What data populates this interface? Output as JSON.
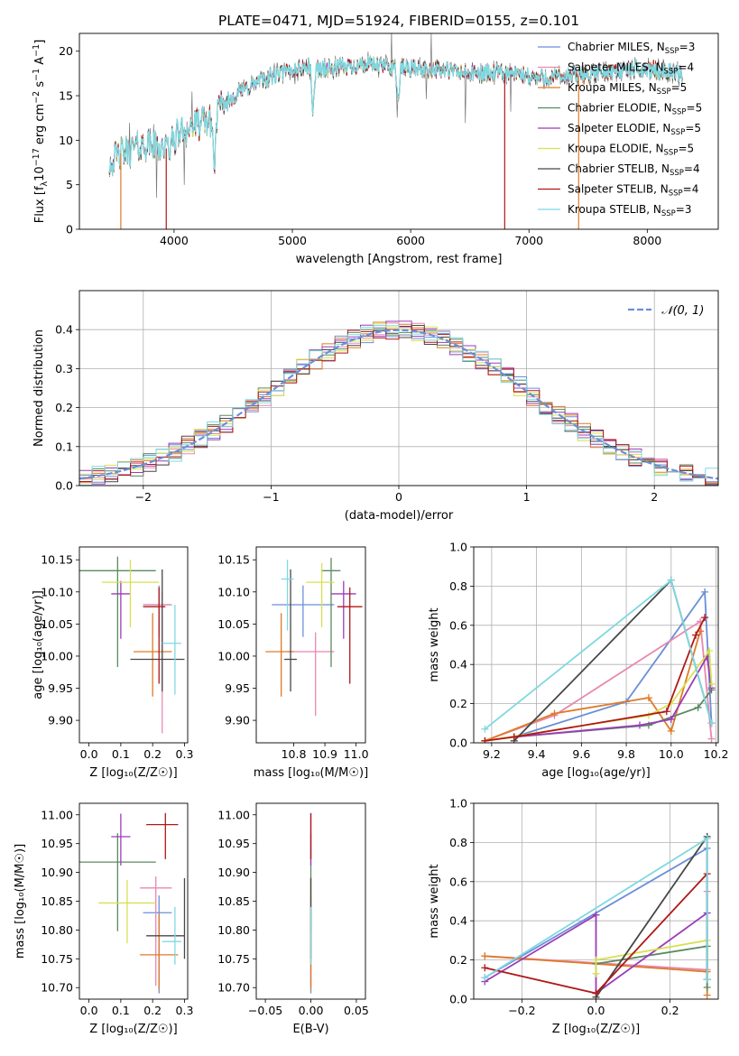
{
  "figure": {
    "title": "PLATE=0471, MJD=51924, FIBERID=0155, z=0.101"
  },
  "models": [
    {
      "name": "Chabrier MILES",
      "nssp": "3",
      "color": "#6a8fd8"
    },
    {
      "name": "Salpeter MILES",
      "nssp": "4",
      "color": "#e888b0"
    },
    {
      "name": "Kroupa MILES",
      "nssp": "5",
      "color": "#e07a28"
    },
    {
      "name": "Chabrier ELODIE",
      "nssp": "5",
      "color": "#5a8a60"
    },
    {
      "name": "Salpeter ELODIE",
      "nssp": "5",
      "color": "#9a3cb8"
    },
    {
      "name": "Kroupa ELODIE",
      "nssp": "5",
      "color": "#d8e050"
    },
    {
      "name": "Chabrier STELIB",
      "nssp": "4",
      "color": "#474747"
    },
    {
      "name": "Salpeter STELIB",
      "nssp": "4",
      "color": "#b01818"
    },
    {
      "name": "Kroupa STELIB",
      "nssp": "3",
      "color": "#80d8e0"
    }
  ],
  "chart_data": [
    {
      "id": "spectrum",
      "type": "line",
      "xlabel": "wavelength [Angstrom, rest frame]",
      "ylabel": "Flux [f_λ 10^-17 erg cm^-2 s^-1 A^-1]",
      "xlim": [
        3200,
        8600
      ],
      "ylim": [
        0,
        22
      ],
      "xticks": [
        4000,
        5000,
        6000,
        7000,
        8000
      ],
      "yticks": [
        0,
        5,
        10,
        15,
        20
      ],
      "legend_loc": "upper right",
      "continuum": {
        "x": [
          3450,
          3550,
          3650,
          3750,
          3850,
          3950,
          4050,
          4150,
          4250,
          4350,
          4500,
          4700,
          4900,
          5100,
          5300,
          5600,
          5900,
          6200,
          6500,
          6800,
          7100,
          7400,
          7700,
          8000,
          8300
        ],
        "y": [
          7.5,
          8.5,
          9.0,
          9.5,
          9.5,
          9.0,
          11.0,
          11.5,
          12.0,
          13.0,
          15.0,
          16.5,
          17.5,
          18.2,
          18.0,
          18.5,
          18.2,
          18.0,
          17.5,
          17.5,
          17.0,
          17.2,
          17.8,
          18.0,
          17.5
        ]
      },
      "dips": [
        {
          "x": 3550,
          "y": 0.0
        },
        {
          "x": 3934,
          "y": 0.0
        },
        {
          "x": 4300,
          "y": 12.0
        },
        {
          "x": 4340,
          "y": 7.0
        },
        {
          "x": 5175,
          "y": 13.0
        },
        {
          "x": 5895,
          "y": 14.0
        },
        {
          "x": 6795,
          "y": 0.0
        },
        {
          "x": 7420,
          "y": 0.0
        }
      ]
    },
    {
      "id": "residuals",
      "type": "histogram",
      "xlabel": "(data-model)/error",
      "ylabel": "Normed distribution",
      "xlim": [
        -2.5,
        2.5
      ],
      "ylim": [
        0,
        0.5
      ],
      "xticks": [
        -2,
        -1,
        0,
        1,
        2
      ],
      "yticks": [
        0.0,
        0.1,
        0.2,
        0.3,
        0.4
      ],
      "grid": true,
      "bin_width": 0.1,
      "reference_label": "𝒩(0, 1)",
      "reference_color": "#6a8fd8",
      "legend_loc": "upper right"
    },
    {
      "id": "z-age",
      "type": "errorbar",
      "xlabel": "Z [log₁₀(Z/Z☉)]",
      "ylabel": "age  [log₁₀(age/yr)]",
      "xlim": [
        -0.03,
        0.31
      ],
      "ylim": [
        9.865,
        10.17
      ],
      "xticks": [
        0.0,
        0.1,
        0.2,
        0.3
      ],
      "yticks": [
        9.9,
        9.95,
        10.0,
        10.05,
        10.1,
        10.15
      ],
      "points": [
        {
          "model": 0,
          "x": 0.22,
          "y": 10.08,
          "xerr": [
            0.05,
            0.04
          ],
          "yerr": [
            0.05,
            0.03
          ]
        },
        {
          "model": 1,
          "x": 0.23,
          "y": 10.08,
          "xerr": [
            0.06,
            0.03
          ],
          "yerr": [
            0.2,
            0.02
          ]
        },
        {
          "model": 2,
          "x": 0.2,
          "y": 10.007,
          "xerr": [
            0.06,
            0.06
          ],
          "yerr": [
            0.07,
            0.06
          ]
        },
        {
          "model": 3,
          "x": 0.09,
          "y": 10.133,
          "xerr": [
            0.12,
            0.12
          ],
          "yerr": [
            0.15,
            0.022
          ]
        },
        {
          "model": 4,
          "x": 0.1,
          "y": 10.097,
          "xerr": [
            0.03,
            0.03
          ],
          "yerr": [
            0.07,
            0.02
          ]
        },
        {
          "model": 5,
          "x": 0.13,
          "y": 10.115,
          "xerr": [
            0.09,
            0.09
          ],
          "yerr": [
            0.07,
            0.035
          ]
        },
        {
          "model": 6,
          "x": 0.23,
          "y": 9.995,
          "xerr": [
            0.1,
            0.07
          ],
          "yerr": [
            0.05,
            0.14
          ]
        },
        {
          "model": 7,
          "x": 0.22,
          "y": 10.077,
          "xerr": [
            0.05,
            0.02
          ],
          "yerr": [
            0.12,
            0.03
          ]
        },
        {
          "model": 8,
          "x": 0.27,
          "y": 10.02,
          "xerr": [
            0.04,
            0.02
          ],
          "yerr": [
            0.08,
            0.06
          ]
        }
      ]
    },
    {
      "id": "mass-age",
      "type": "errorbar",
      "xlabel": "mass [log₁₀(M/M☉)]",
      "ylabel": "",
      "xlim": [
        10.68,
        11.03
      ],
      "ylim": [
        9.865,
        10.17
      ],
      "xticks": [
        10.8,
        10.9,
        11.0
      ],
      "yticks": [
        9.9,
        9.95,
        10.0,
        10.05,
        10.1,
        10.15
      ],
      "points": [
        {
          "model": 0,
          "x": 10.83,
          "y": 10.08,
          "xerr": [
            0.1,
            0.1
          ],
          "yerr": [
            0.05,
            0.03
          ]
        },
        {
          "model": 1,
          "x": 10.87,
          "y": 10.007,
          "xerr": [
            0.09,
            0.06
          ],
          "yerr": [
            0.1,
            0.03
          ]
        },
        {
          "model": 2,
          "x": 10.76,
          "y": 10.007,
          "xerr": [
            0.05,
            0.04
          ],
          "yerr": [
            0.07,
            0.06
          ]
        },
        {
          "model": 3,
          "x": 10.92,
          "y": 10.133,
          "xerr": [
            0.03,
            0.03
          ],
          "yerr": [
            0.15,
            0.02
          ]
        },
        {
          "model": 4,
          "x": 10.96,
          "y": 10.097,
          "xerr": [
            0.04,
            0.04
          ],
          "yerr": [
            0.07,
            0.02
          ]
        },
        {
          "model": 5,
          "x": 10.89,
          "y": 10.115,
          "xerr": [
            0.05,
            0.04
          ],
          "yerr": [
            0.07,
            0.03
          ]
        },
        {
          "model": 6,
          "x": 10.79,
          "y": 9.995,
          "xerr": [
            0.02,
            0.02
          ],
          "yerr": [
            0.05,
            0.14
          ]
        },
        {
          "model": 7,
          "x": 10.98,
          "y": 10.077,
          "xerr": [
            0.04,
            0.04
          ],
          "yerr": [
            0.12,
            0.03
          ]
        },
        {
          "model": 8,
          "x": 10.78,
          "y": 10.12,
          "xerr": [
            0.02,
            0.02
          ],
          "yerr": [
            0.08,
            0.03
          ]
        }
      ]
    },
    {
      "id": "age-weight",
      "type": "line",
      "xlabel": "age  [log₁₀(age/yr)]",
      "ylabel": "mass weight",
      "xlim": [
        9.12,
        10.21
      ],
      "ylim": [
        0,
        1.0
      ],
      "xticks": [
        9.2,
        9.4,
        9.6,
        9.8,
        10.0,
        10.2
      ],
      "yticks": [
        0.0,
        0.2,
        0.4,
        0.6,
        0.8,
        1.0
      ],
      "grid": true,
      "series": [
        {
          "model": 0,
          "x": [
            9.3,
            9.8,
            10.15,
            10.18
          ],
          "y": [
            0.03,
            0.21,
            0.77,
            0.1
          ]
        },
        {
          "model": 1,
          "x": [
            9.17,
            9.48,
            10.13,
            10.18
          ],
          "y": [
            0.01,
            0.14,
            0.62,
            0.02
          ]
        },
        {
          "model": 2,
          "x": [
            9.17,
            9.48,
            9.9,
            10.0,
            10.13
          ],
          "y": [
            0.01,
            0.15,
            0.23,
            0.06,
            0.57
          ]
        },
        {
          "model": 3,
          "x": [
            9.3,
            9.9,
            10.12,
            10.18
          ],
          "y": [
            0.03,
            0.09,
            0.18,
            0.27
          ]
        },
        {
          "model": 4,
          "x": [
            9.3,
            9.86,
            10.0,
            10.16,
            10.18
          ],
          "y": [
            0.03,
            0.09,
            0.12,
            0.44,
            0.28
          ]
        },
        {
          "model": 5,
          "x": [
            9.17,
            9.9,
            10.0,
            10.17,
            10.18
          ],
          "y": [
            0.01,
            0.14,
            0.2,
            0.47,
            0.3
          ]
        },
        {
          "model": 6,
          "x": [
            9.3,
            10.0,
            10.18
          ],
          "y": [
            0.01,
            0.83,
            0.1
          ]
        },
        {
          "model": 7,
          "x": [
            9.17,
            9.3,
            9.98,
            10.11,
            10.15
          ],
          "y": [
            0.01,
            0.03,
            0.16,
            0.55,
            0.64
          ]
        },
        {
          "model": 8,
          "x": [
            9.17,
            10.0,
            10.18
          ],
          "y": [
            0.07,
            0.83,
            0.1
          ]
        }
      ]
    },
    {
      "id": "z-mass",
      "type": "errorbar",
      "xlabel": "Z [log₁₀(Z/Z☉)]",
      "ylabel": "mass [log₁₀(M/M☉)]",
      "xlim": [
        -0.03,
        0.31
      ],
      "ylim": [
        10.68,
        11.02
      ],
      "xticks": [
        0.0,
        0.1,
        0.2,
        0.3
      ],
      "yticks": [
        10.7,
        10.75,
        10.8,
        10.85,
        10.9,
        10.95,
        11.0
      ],
      "points": [
        {
          "model": 0,
          "x": 0.22,
          "y": 10.83,
          "xerr": [
            0.05,
            0.04
          ],
          "yerr": [
            0.14,
            0.03
          ]
        },
        {
          "model": 1,
          "x": 0.21,
          "y": 10.873,
          "xerr": [
            0.05,
            0.05
          ],
          "yerr": [
            0.17,
            0.02
          ]
        },
        {
          "model": 2,
          "x": 0.22,
          "y": 10.757,
          "xerr": [
            0.06,
            0.06
          ],
          "yerr": [
            0.06,
            0.07
          ]
        },
        {
          "model": 3,
          "x": 0.09,
          "y": 10.918,
          "xerr": [
            0.12,
            0.12
          ],
          "yerr": [
            0.12,
            0.05
          ]
        },
        {
          "model": 4,
          "x": 0.1,
          "y": 10.962,
          "xerr": [
            0.03,
            0.03
          ],
          "yerr": [
            0.05,
            0.04
          ]
        },
        {
          "model": 5,
          "x": 0.12,
          "y": 10.847,
          "xerr": [
            0.09,
            0.09
          ],
          "yerr": [
            0.07,
            0.04
          ]
        },
        {
          "model": 6,
          "x": 0.3,
          "y": 10.79,
          "xerr": [
            0.12,
            0.0
          ],
          "yerr": [
            0.04,
            0.1
          ]
        },
        {
          "model": 7,
          "x": 0.24,
          "y": 10.983,
          "xerr": [
            0.06,
            0.04
          ],
          "yerr": [
            0.06,
            0.02
          ]
        },
        {
          "model": 8,
          "x": 0.27,
          "y": 10.78,
          "xerr": [
            0.04,
            0.02
          ],
          "yerr": [
            0.04,
            0.06
          ]
        }
      ]
    },
    {
      "id": "ebv-mass",
      "type": "errorbar",
      "xlabel": "E(B-V)",
      "ylabel": "",
      "xlim": [
        -0.06,
        0.06
      ],
      "ylim": [
        10.68,
        11.02
      ],
      "xticks": [
        -0.05,
        0.0,
        0.05
      ],
      "xticklabels": [
        "−0.05",
        "0.00",
        "0.05"
      ],
      "yticks": [
        10.7,
        10.75,
        10.8,
        10.85,
        10.9,
        10.95,
        11.0
      ],
      "points": [
        {
          "model": 0,
          "x": 0.0,
          "y": 10.83,
          "xerr": [
            0,
            0
          ],
          "yerr": [
            0.14,
            0.03
          ]
        },
        {
          "model": 1,
          "x": 0.0,
          "y": 10.873,
          "xerr": [
            0,
            0
          ],
          "yerr": [
            0.17,
            0.02
          ]
        },
        {
          "model": 2,
          "x": 0.0,
          "y": 10.757,
          "xerr": [
            0,
            0
          ],
          "yerr": [
            0.06,
            0.07
          ]
        },
        {
          "model": 3,
          "x": 0.0,
          "y": 10.918,
          "xerr": [
            0,
            0
          ],
          "yerr": [
            0.12,
            0.05
          ]
        },
        {
          "model": 4,
          "x": 0.0,
          "y": 10.962,
          "xerr": [
            0,
            0
          ],
          "yerr": [
            0.05,
            0.04
          ]
        },
        {
          "model": 5,
          "x": 0.0,
          "y": 10.847,
          "xerr": [
            0,
            0
          ],
          "yerr": [
            0.07,
            0.04
          ]
        },
        {
          "model": 6,
          "x": 0.0,
          "y": 10.79,
          "xerr": [
            0,
            0
          ],
          "yerr": [
            0.04,
            0.1
          ]
        },
        {
          "model": 7,
          "x": 0.0,
          "y": 10.983,
          "xerr": [
            0,
            0
          ],
          "yerr": [
            0.06,
            0.02
          ]
        },
        {
          "model": 8,
          "x": 0.0,
          "y": 10.78,
          "xerr": [
            0,
            0
          ],
          "yerr": [
            0.04,
            0.06
          ]
        }
      ]
    },
    {
      "id": "z-weight",
      "type": "line",
      "xlabel": "Z [log₁₀(Z/Z☉)]",
      "ylabel": "mass weight",
      "xlim": [
        -0.33,
        0.33
      ],
      "ylim": [
        0,
        1.0
      ],
      "xticks": [
        -0.2,
        0.0,
        0.2
      ],
      "xticklabels": [
        "−0.2",
        "0.0",
        "0.2"
      ],
      "yticks": [
        0.0,
        0.2,
        0.4,
        0.6,
        0.8,
        1.0
      ],
      "grid": true,
      "series": [
        {
          "model": 0,
          "x": [
            -0.3,
            0.3,
            0.3
          ],
          "y": [
            0.11,
            0.77,
            0.1
          ]
        },
        {
          "model": 1,
          "x": [
            -0.3,
            0.3,
            0.3
          ],
          "y": [
            0.22,
            0.15,
            0.55
          ]
        },
        {
          "model": 2,
          "x": [
            -0.3,
            0.3,
            0.3
          ],
          "y": [
            0.22,
            0.14,
            0.02
          ]
        },
        {
          "model": 3,
          "x": [
            0.0,
            0.3,
            0.3
          ],
          "y": [
            0.18,
            0.27,
            0.06
          ]
        },
        {
          "model": 4,
          "x": [
            -0.3,
            0.0,
            0.0,
            0.3
          ],
          "y": [
            0.09,
            0.43,
            0.03,
            0.44
          ]
        },
        {
          "model": 5,
          "x": [
            0.0,
            0.0,
            0.3
          ],
          "y": [
            0.13,
            0.2,
            0.3
          ]
        },
        {
          "model": 6,
          "x": [
            0.0,
            0.3,
            0.3
          ],
          "y": [
            0.01,
            0.83,
            0.1
          ]
        },
        {
          "model": 7,
          "x": [
            -0.3,
            0.0,
            0.3
          ],
          "y": [
            0.16,
            0.03,
            0.64
          ]
        },
        {
          "model": 8,
          "x": [
            -0.3,
            0.3,
            0.3
          ],
          "y": [
            0.11,
            0.82,
            0.1
          ]
        }
      ]
    }
  ]
}
